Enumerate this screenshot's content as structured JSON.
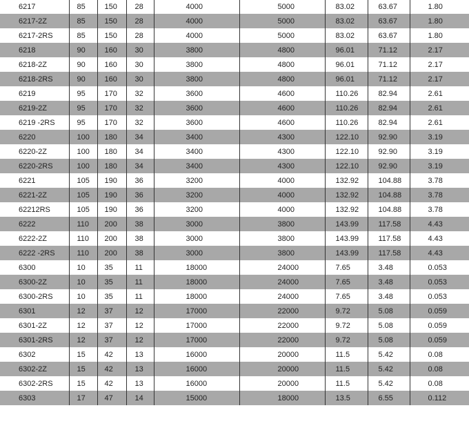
{
  "table": {
    "rows": [
      [
        "6217",
        "85",
        "150",
        "28",
        "4000",
        "5000",
        "83.02",
        "63.67",
        "1.80"
      ],
      [
        "6217-2Z",
        "85",
        "150",
        "28",
        "4000",
        "5000",
        "83.02",
        "63.67",
        "1.80"
      ],
      [
        "6217-2RS",
        "85",
        "150",
        "28",
        "4000",
        "5000",
        "83.02",
        "63.67",
        "1.80"
      ],
      [
        "6218",
        "90",
        "160",
        "30",
        "3800",
        "4800",
        "96.01",
        "71.12",
        "2.17"
      ],
      [
        "6218-2Z",
        "90",
        "160",
        "30",
        "3800",
        "4800",
        "96.01",
        "71.12",
        "2.17"
      ],
      [
        "6218-2RS",
        "90",
        "160",
        "30",
        "3800",
        "4800",
        "96.01",
        "71.12",
        "2.17"
      ],
      [
        "6219",
        "95",
        "170",
        "32",
        "3600",
        "4600",
        "110.26",
        "82.94",
        "2.61"
      ],
      [
        "6219-2Z",
        "95",
        "170",
        "32",
        "3600",
        "4600",
        "110.26",
        "82.94",
        "2.61"
      ],
      [
        "6219 -2RS",
        "95",
        "170",
        "32",
        "3600",
        "4600",
        "110.26",
        "82.94",
        "2.61"
      ],
      [
        "6220",
        "100",
        "180",
        "34",
        "3400",
        "4300",
        "122.10",
        "92.90",
        "3.19"
      ],
      [
        "6220-2Z",
        "100",
        "180",
        "34",
        "3400",
        "4300",
        "122.10",
        "92.90",
        "3.19"
      ],
      [
        "6220-2RS",
        "100",
        "180",
        "34",
        "3400",
        "4300",
        "122.10",
        "92.90",
        "3.19"
      ],
      [
        "6221",
        "105",
        "190",
        "36",
        "3200",
        "4000",
        "132.92",
        "104.88",
        "3.78"
      ],
      [
        "6221-2Z",
        "105",
        "190",
        "36",
        "3200",
        "4000",
        "132.92",
        "104.88",
        "3.78"
      ],
      [
        "62212RS",
        "105",
        "190",
        "36",
        "3200",
        "4000",
        "132.92",
        "104.88",
        "3.78"
      ],
      [
        "6222",
        "110",
        "200",
        "38",
        "3000",
        "3800",
        "143.99",
        "117.58",
        "4.43"
      ],
      [
        "6222-2Z",
        "110",
        "200",
        "38",
        "3000",
        "3800",
        "143.99",
        "117.58",
        "4.43"
      ],
      [
        "6222 -2RS",
        "110",
        "200",
        "38",
        "3000",
        "3800",
        "143.99",
        "117.58",
        "4.43"
      ],
      [
        "6300",
        "10",
        "35",
        "11",
        "18000",
        "24000",
        "7.65",
        "3.48",
        "0.053"
      ],
      [
        "6300-2Z",
        "10",
        "35",
        "11",
        "18000",
        "24000",
        "7.65",
        "3.48",
        "0.053"
      ],
      [
        "6300-2RS",
        "10",
        "35",
        "11",
        "18000",
        "24000",
        "7.65",
        "3.48",
        "0.053"
      ],
      [
        "6301",
        "12",
        "37",
        "12",
        "17000",
        "22000",
        "9.72",
        "5.08",
        "0.059"
      ],
      [
        "6301-2Z",
        "12",
        "37",
        "12",
        "17000",
        "22000",
        "9.72",
        "5.08",
        "0.059"
      ],
      [
        "6301-2RS",
        "12",
        "37",
        "12",
        "17000",
        "22000",
        "9.72",
        "5.08",
        "0.059"
      ],
      [
        "6302",
        "15",
        "42",
        "13",
        "16000",
        "20000",
        "11.5",
        "5.42",
        "0.08"
      ],
      [
        "6302-2Z",
        "15",
        "42",
        "13",
        "16000",
        "20000",
        "11.5",
        "5.42",
        "0.08"
      ],
      [
        "6302-2RS",
        "15",
        "42",
        "13",
        "16000",
        "20000",
        "11.5",
        "5.42",
        "0.08"
      ],
      [
        "6303",
        "17",
        "47",
        "14",
        "15000",
        "18000",
        "13.5",
        "6.55",
        "0.112"
      ]
    ]
  }
}
